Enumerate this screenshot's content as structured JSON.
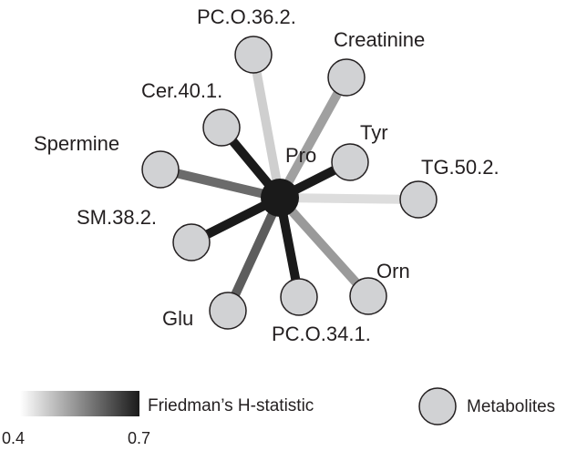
{
  "hub": {
    "label": "Pro",
    "color": "#1a1a1a"
  },
  "nodes": [
    {
      "id": "pc-o-36-2",
      "label": "PC.O.36.2.",
      "h": 0.43
    },
    {
      "id": "creatinine",
      "label": "Creatinine",
      "h": 0.5
    },
    {
      "id": "cer-40-1",
      "label": "Cer.40.1.",
      "h": 0.7
    },
    {
      "id": "tyr",
      "label": "Tyr",
      "h": 0.7
    },
    {
      "id": "spermine",
      "label": "Spermine",
      "h": 0.58
    },
    {
      "id": "tg-50-2",
      "label": "TG.50.2.",
      "h": 0.41
    },
    {
      "id": "sm-38-2",
      "label": "SM.38.2.",
      "h": 0.7
    },
    {
      "id": "orn",
      "label": "Orn",
      "h": 0.51
    },
    {
      "id": "glu",
      "label": "Glu",
      "h": 0.6
    },
    {
      "id": "pc-o-34-1",
      "label": "PC.O.34.1.",
      "h": 0.7
    }
  ],
  "legend": {
    "gradient_title": "Friedman’s H-statistic",
    "gradient_min": "0.4",
    "gradient_max": "0.7",
    "gradient_light_color": "#ffffff",
    "gradient_dark_color": "#1a1a1a",
    "node_title": "Metabolites",
    "node_fill": "#d1d2d4",
    "node_stroke": "#231f20"
  }
}
